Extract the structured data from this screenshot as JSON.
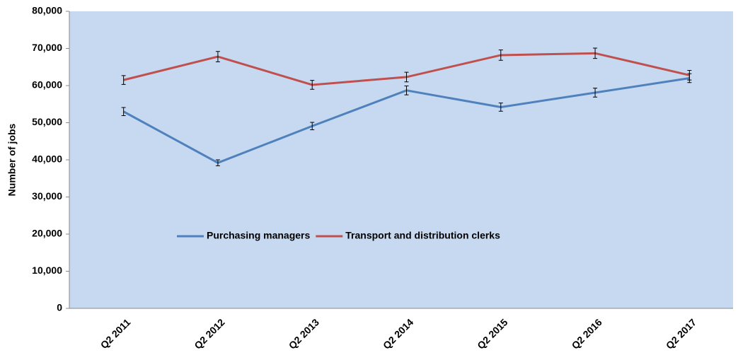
{
  "chart_data": {
    "type": "line",
    "y_label": "Number of jobs",
    "categories": [
      "Q2 2011",
      "Q2 2012",
      "Q2 2013",
      "Q2 2014",
      "Q2 2015",
      "Q2 2016",
      "Q2 2017"
    ],
    "series": [
      {
        "name": "Purchasing managers",
        "color": "#4f81bd",
        "values": [
          53000,
          39200,
          49100,
          58700,
          54200,
          58100,
          62000
        ],
        "errors": [
          1100,
          800,
          1000,
          1200,
          1100,
          1200,
          1200
        ]
      },
      {
        "name": "Transport and distribution clerks",
        "color": "#c0504d",
        "values": [
          61500,
          67800,
          60200,
          62300,
          68200,
          68700,
          62800
        ],
        "errors": [
          1200,
          1400,
          1200,
          1300,
          1400,
          1400,
          1300
        ]
      }
    ],
    "ylim": [
      0,
      80000
    ],
    "yticks": [
      0,
      {
        "value": 10000,
        "label": "10,000"
      },
      {
        "value": 20000,
        "label": "20,000"
      },
      {
        "value": 30000,
        "label": "30,000"
      },
      {
        "value": 40000,
        "label": "40,000"
      },
      {
        "value": 50000,
        "label": "50,000"
      },
      {
        "value": 60000,
        "label": "60,000"
      },
      {
        "value": 70000,
        "label": "70,000"
      },
      {
        "value": 80000,
        "label": "80,000"
      }
    ],
    "plot_background": "#c6d9f1",
    "legend": "inside-left"
  }
}
